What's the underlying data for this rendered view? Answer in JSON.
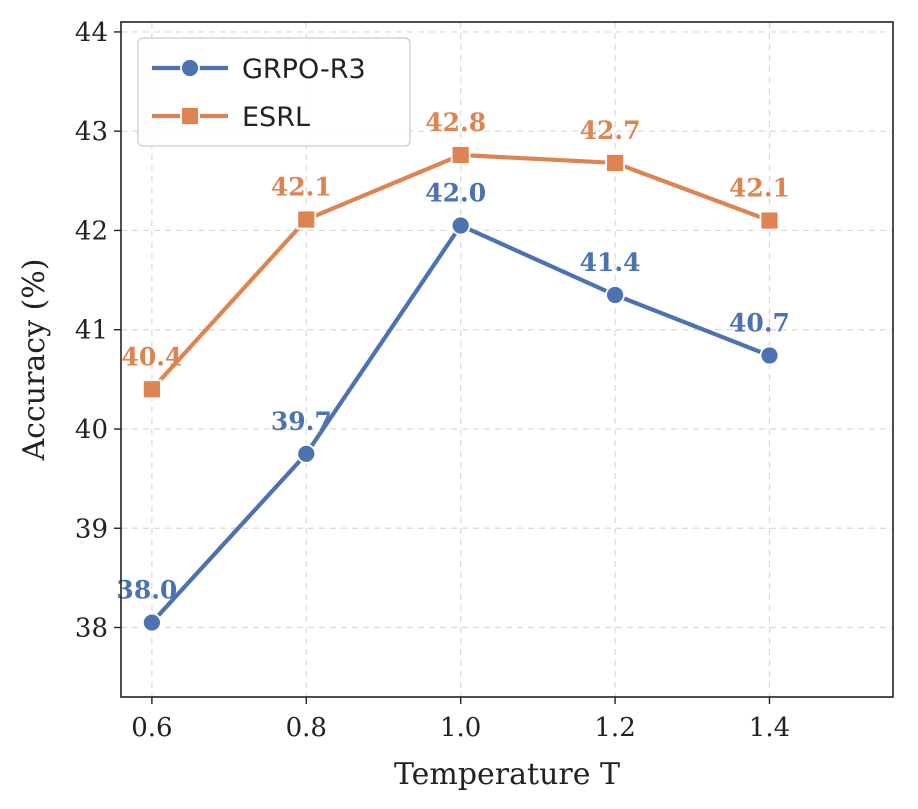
{
  "chart_data": {
    "type": "line",
    "xlabel": "Temperature T",
    "ylabel": "Accuracy (%)",
    "x": [
      0.6,
      0.8,
      1.0,
      1.2,
      1.4
    ],
    "x_tick_labels": [
      "0.6",
      "0.8",
      "1.0",
      "1.2",
      "1.4"
    ],
    "y_ticks": [
      38,
      39,
      40,
      41,
      42,
      43,
      44
    ],
    "y_tick_labels": [
      "38",
      "39",
      "40",
      "41",
      "42",
      "43",
      "44"
    ],
    "xlim": [
      0.56,
      1.56
    ],
    "ylim": [
      37.3,
      44.1
    ],
    "grid": true,
    "legend_position": "top-left",
    "series": [
      {
        "name": "GRPO-R3",
        "color": "#4c72b0",
        "marker": "circle",
        "values": [
          38.05,
          39.75,
          42.05,
          41.35,
          40.74
        ],
        "labels": [
          "38.0",
          "39.7",
          "42.0",
          "41.4",
          "40.7"
        ]
      },
      {
        "name": "ESRL",
        "color": "#dd8452",
        "marker": "square",
        "values": [
          40.4,
          42.11,
          42.76,
          42.68,
          42.1
        ],
        "labels": [
          "40.4",
          "42.1",
          "42.8",
          "42.7",
          "42.1"
        ]
      }
    ]
  }
}
